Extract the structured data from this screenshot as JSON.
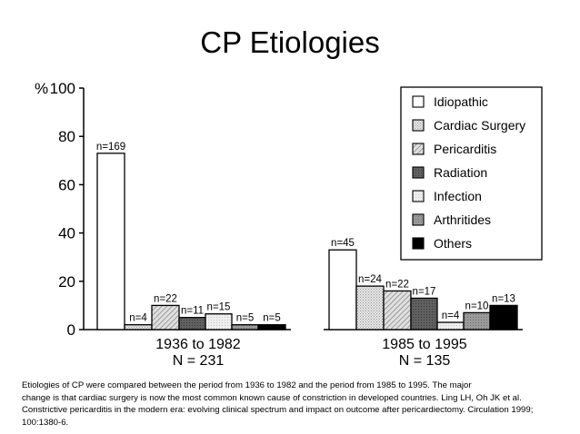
{
  "title": "CP Etiologies",
  "colors": {
    "background": "#ffffff",
    "ink": "#000000"
  },
  "chart_data": {
    "type": "bar",
    "ylabel": "%",
    "ylim": [
      0,
      100
    ],
    "yticks": [
      0,
      20,
      40,
      60,
      80,
      100
    ],
    "ytick_labels": [
      "0",
      "20",
      "40",
      "60",
      "80",
      "100"
    ],
    "grid": false,
    "legend_position": "top-right",
    "groups": [
      {
        "label": "1936 to 1982",
        "total": "N = 231"
      },
      {
        "label": "1985 to 1995",
        "total": "N = 135"
      }
    ],
    "series": [
      {
        "name": "Idiopathic",
        "fill": "white",
        "values": [
          73,
          33
        ],
        "labels": [
          "n=169",
          "n=45"
        ]
      },
      {
        "name": "Cardiac Surgery",
        "fill": "light-dotted",
        "values": [
          2,
          18
        ],
        "labels": [
          "n=4",
          "n=24"
        ]
      },
      {
        "name": "Pericarditis",
        "fill": "diagonal-hatch",
        "values": [
          10,
          16
        ],
        "labels": [
          "n=22",
          "n=22"
        ]
      },
      {
        "name": "Radiation",
        "fill": "dark-gray",
        "values": [
          5,
          13
        ],
        "labels": [
          "n=11",
          "n=17"
        ]
      },
      {
        "name": "Infection",
        "fill": "very-light-gray",
        "values": [
          6.5,
          3
        ],
        "labels": [
          "n=15",
          "n=4"
        ]
      },
      {
        "name": "Arthritides",
        "fill": "medium-gray",
        "values": [
          2,
          7
        ],
        "labels": [
          "n=5",
          "n=10"
        ]
      },
      {
        "name": "Others",
        "fill": "black",
        "values": [
          2,
          10
        ],
        "labels": [
          "n=5",
          "n=13"
        ]
      }
    ]
  },
  "caption": [
    "Etiologies of CP were compared between the period from 1936 to 1982 and the period from 1985 to 1995. The major",
    "change is that cardiac surgery is now the most common known cause of constriction in developed countries. Ling LH, Oh JK et al.",
    "Constrictive pericarditis in the modern era: evolving clinical spectrum and impact on outcome after pericardiectomy. Circulation 1999;",
    "100:1380-6."
  ]
}
